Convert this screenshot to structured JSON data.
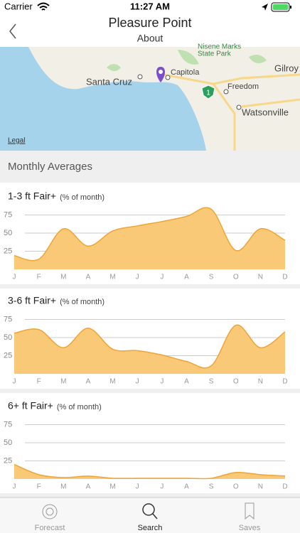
{
  "status_bar": {
    "carrier": "Carrier",
    "time": "11:27 AM"
  },
  "nav": {
    "title": "Pleasure Point",
    "subtitle": "About"
  },
  "map": {
    "labels": [
      "Nisene Marks",
      "State Park",
      "Gilroy",
      "Santa Cruz",
      "Capitola",
      "Freedom",
      "Watsonville",
      "Legal",
      "1"
    ]
  },
  "section_title": "Monthly Averages",
  "chart_data": [
    {
      "type": "area",
      "title": "1-3 ft Fair+",
      "subtitle": "(% of month)",
      "categories": [
        "J",
        "F",
        "M",
        "A",
        "M",
        "J",
        "J",
        "A",
        "S",
        "O",
        "N",
        "D"
      ],
      "values": [
        19,
        14,
        56,
        32,
        53,
        60,
        66,
        73,
        83,
        26,
        56,
        40
      ],
      "ylim": [
        0,
        90
      ],
      "yticks": [
        25,
        50,
        75
      ],
      "grid": true,
      "color": "#f9c977",
      "line_color": "#eea536"
    },
    {
      "type": "area",
      "title": "3-6 ft Fair+",
      "subtitle": "(% of month)",
      "categories": [
        "J",
        "F",
        "M",
        "A",
        "M",
        "J",
        "J",
        "A",
        "S",
        "O",
        "N",
        "D"
      ],
      "values": [
        56,
        61,
        36,
        63,
        34,
        32,
        26,
        17,
        11,
        67,
        36,
        58
      ],
      "ylim": [
        0,
        90
      ],
      "yticks": [
        25,
        50,
        75
      ],
      "grid": true,
      "color": "#f9c977",
      "line_color": "#eea536"
    },
    {
      "type": "area",
      "title": "6+ ft Fair+",
      "subtitle": "(% of month)",
      "categories": [
        "J",
        "F",
        "M",
        "A",
        "M",
        "J",
        "J",
        "A",
        "S",
        "O",
        "N",
        "D"
      ],
      "values": [
        20,
        6,
        2,
        4,
        1,
        1,
        1,
        1,
        1,
        9,
        6,
        4
      ],
      "ylim": [
        0,
        90
      ],
      "yticks": [
        25,
        50,
        75
      ],
      "grid": true,
      "color": "#f9c977",
      "line_color": "#eea536"
    }
  ],
  "tabs": [
    "Forecast",
    "Search",
    "Saves"
  ]
}
